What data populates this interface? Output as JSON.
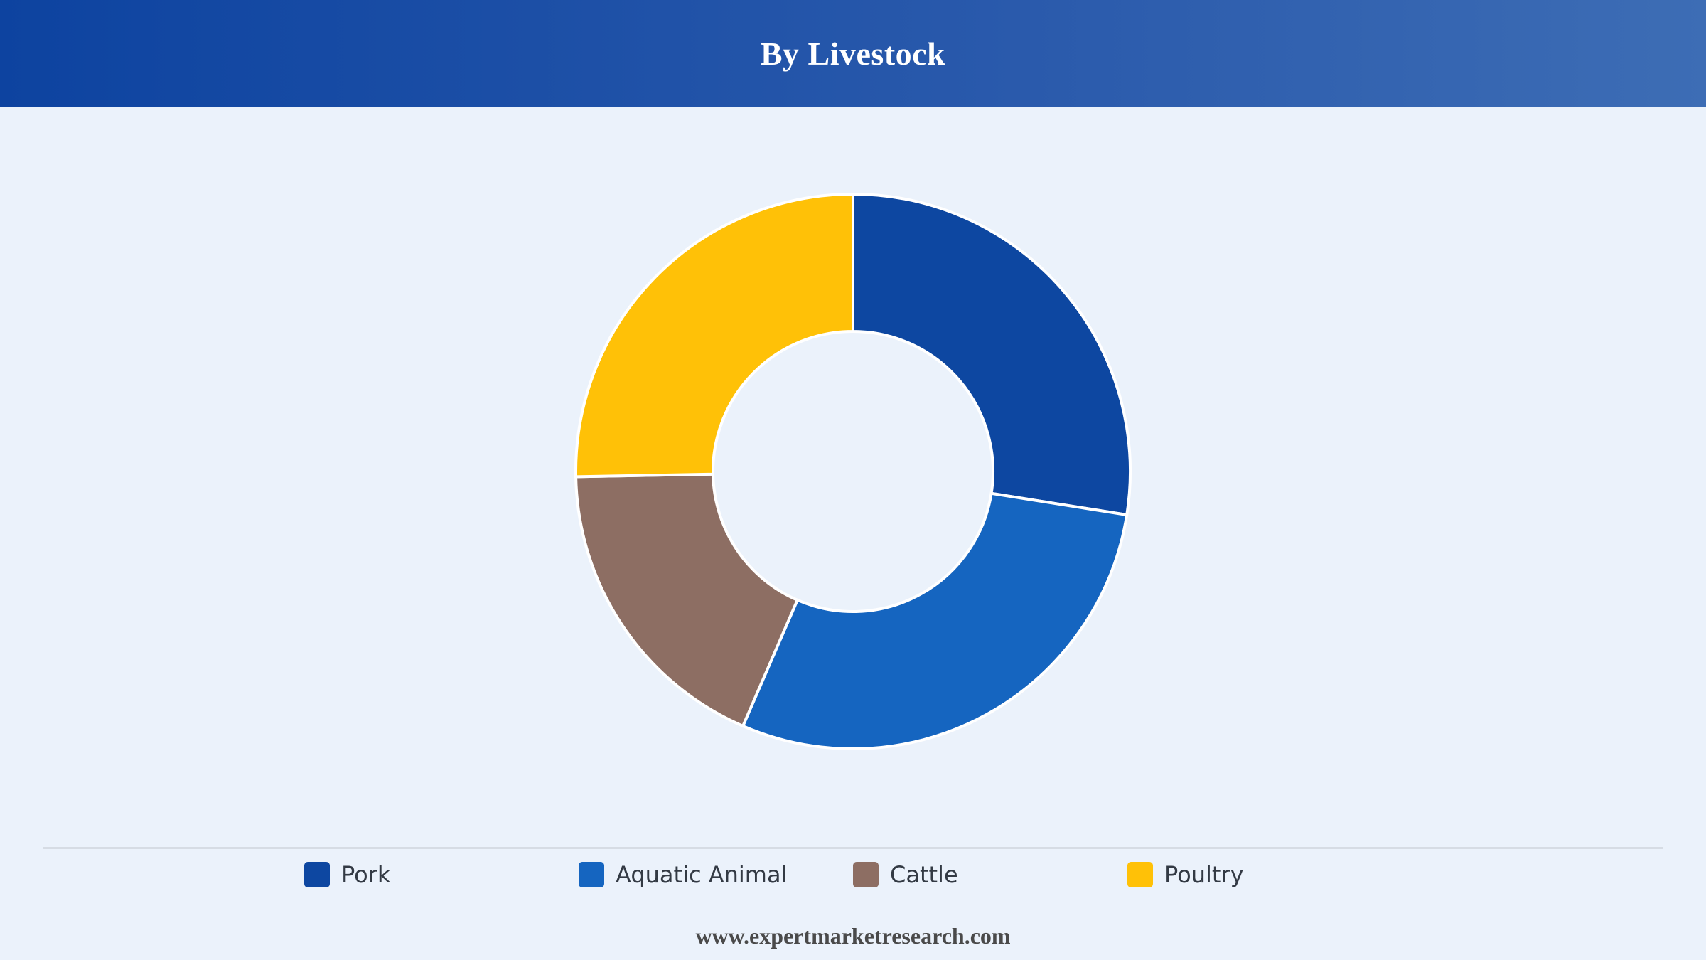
{
  "header": {
    "title": "By Livestock"
  },
  "chart_data": {
    "type": "pie",
    "style": "donut",
    "title": "By Livestock",
    "categories": [
      "Pork",
      "Aquatic Animal",
      "Cattle",
      "Poultry"
    ],
    "values": [
      27.5,
      29.0,
      18.2,
      25.3
    ],
    "unit": "%",
    "colors": [
      "#0d47a1",
      "#1565c0",
      "#8d6e63",
      "#ffc107"
    ],
    "start_angle": "12 o'clock",
    "direction": "clockwise",
    "legend_position": "bottom"
  },
  "legend": {
    "items": [
      {
        "label": "Pork",
        "color": "#0d47a1"
      },
      {
        "label": "Aquatic Animal",
        "color": "#1565c0"
      },
      {
        "label": "Cattle",
        "color": "#8d6e63"
      },
      {
        "label": "Poultry",
        "color": "#ffc107"
      }
    ]
  },
  "footer": {
    "source": "www.expertmarketresearch.com"
  }
}
